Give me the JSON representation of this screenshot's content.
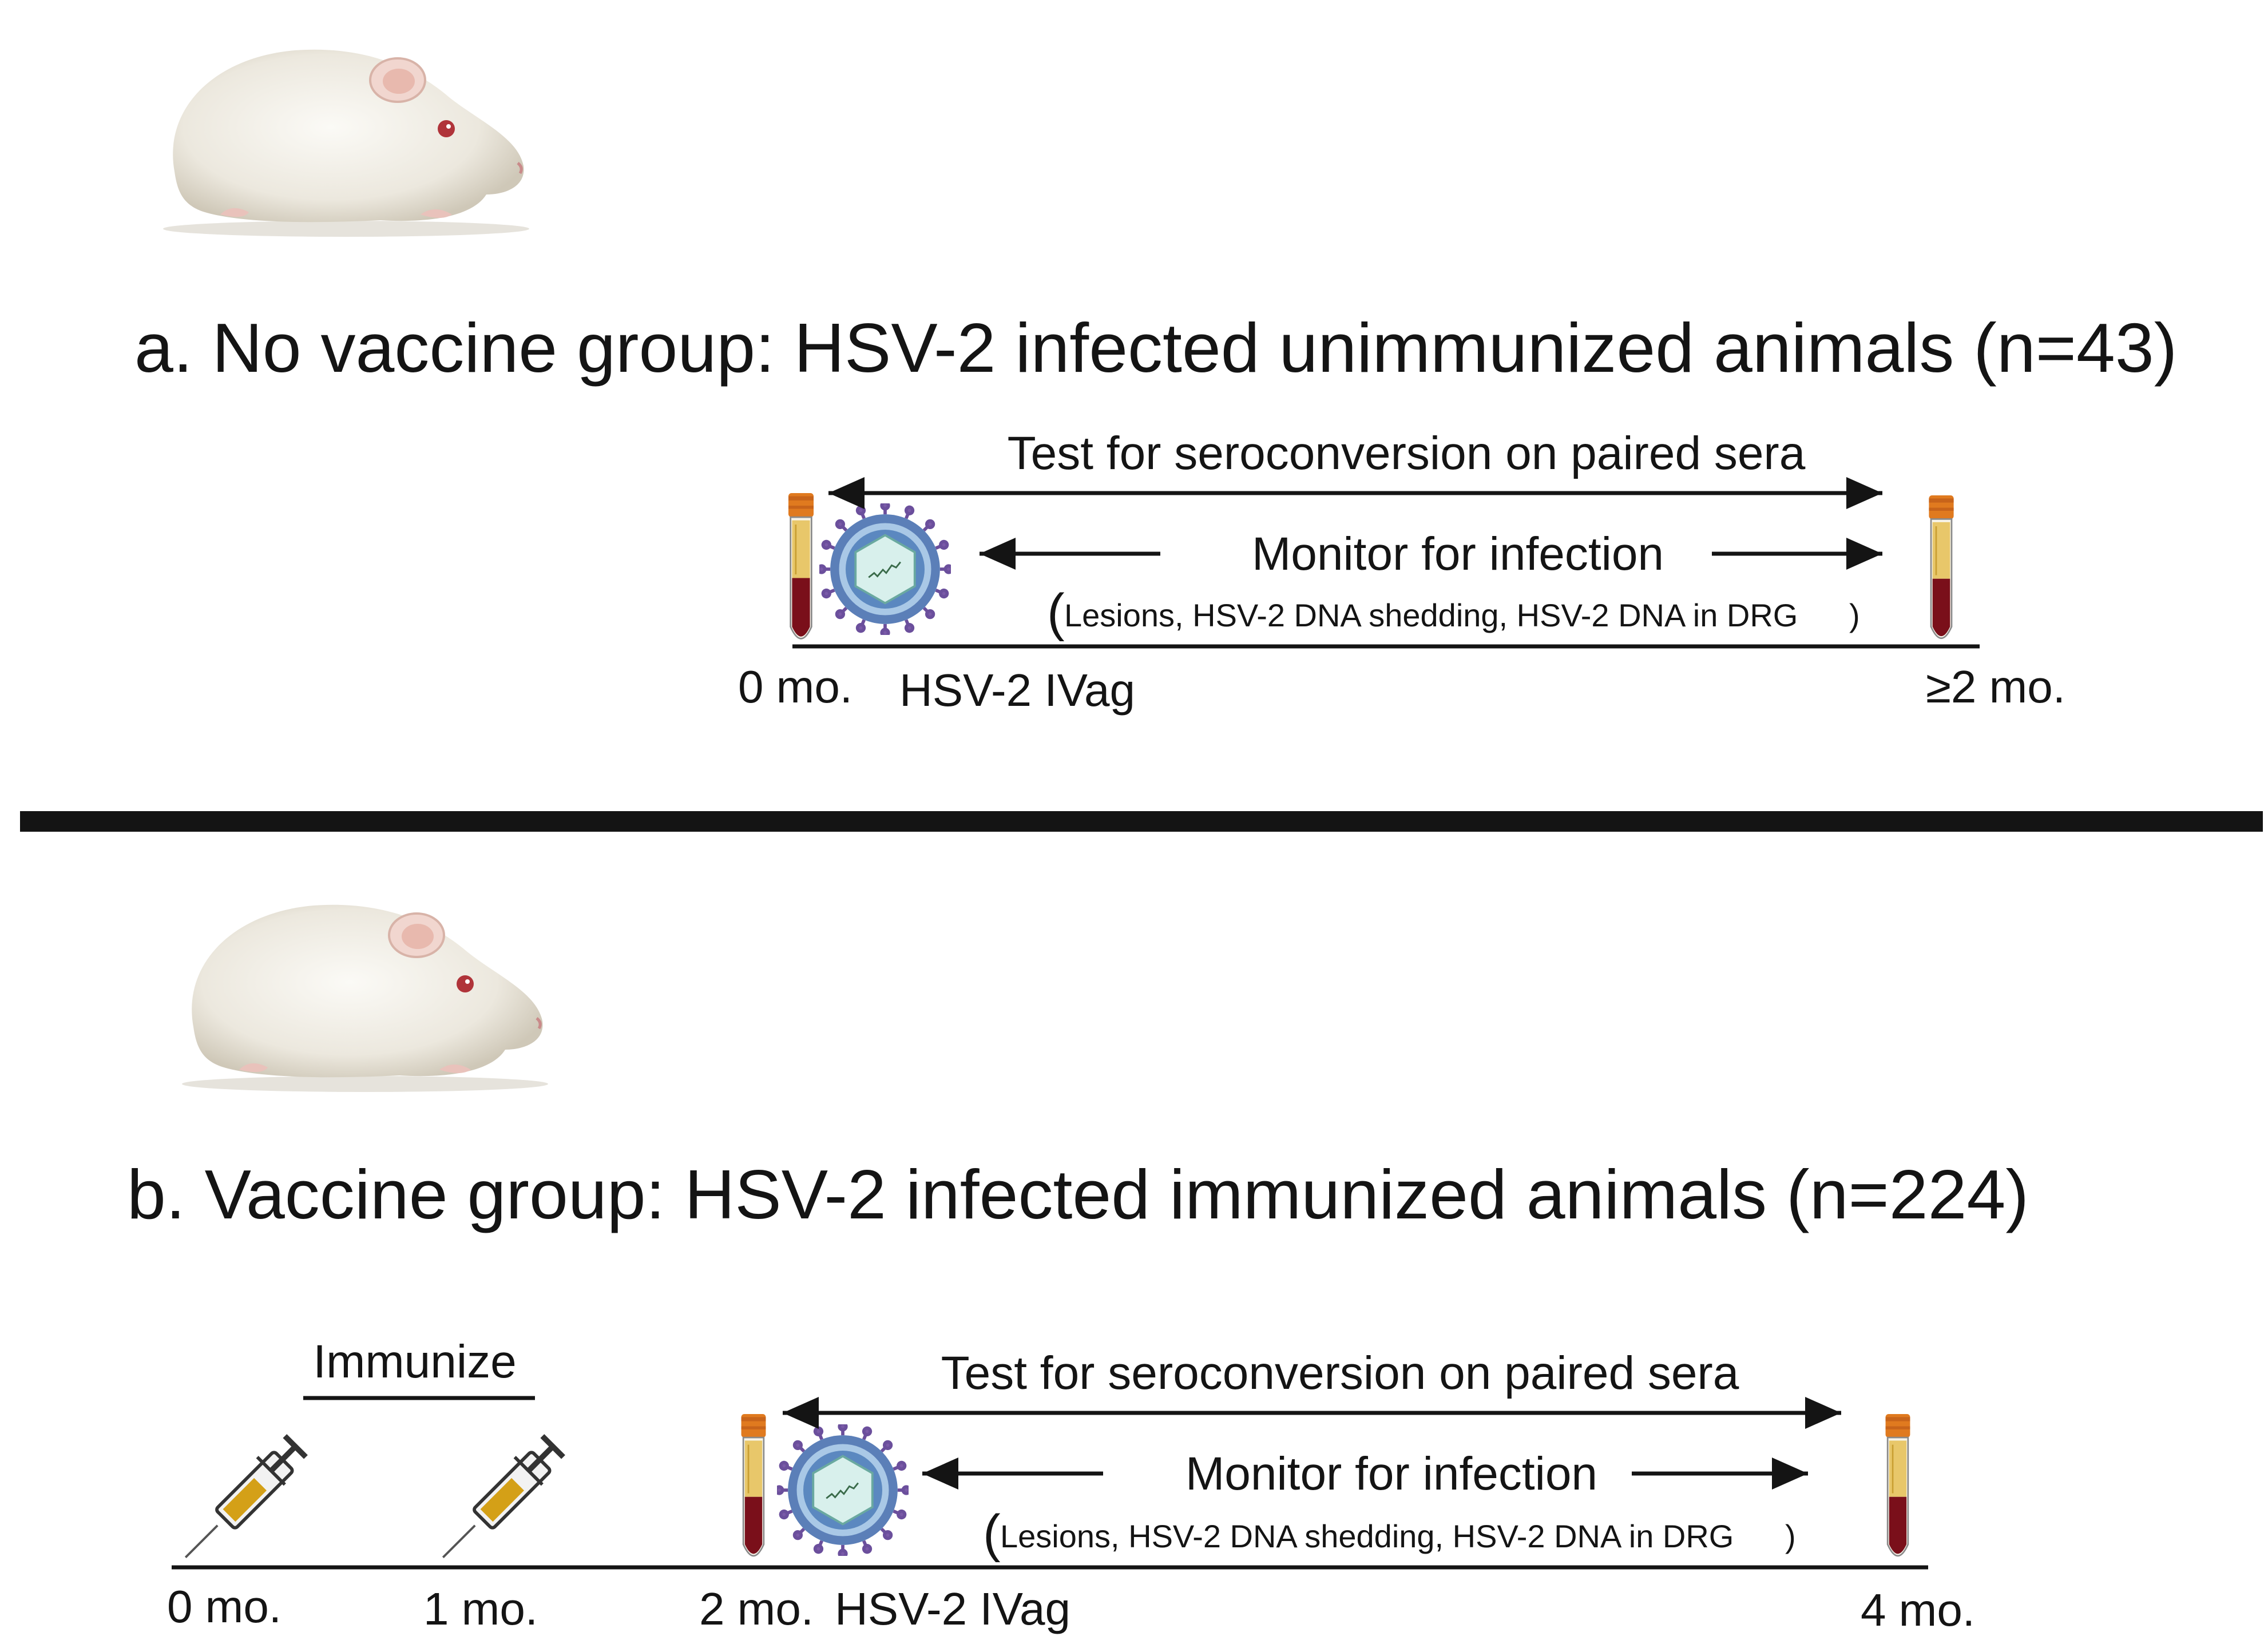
{
  "panel_a": {
    "title": "a. No vaccine group: HSV-2 infected unimmunized animals (n=43)",
    "test_label": "Test for seroconversion on paired sera",
    "monitor_label": "Monitor for infection",
    "monitor_detail": "Lesions, HSV-2 DNA shedding, HSV-2 DNA in DRG",
    "timepoints": [
      "0 mo.",
      "≥2 mo."
    ],
    "challenge_label": "HSV-2 IVag"
  },
  "panel_b": {
    "title": "b. Vaccine group: HSV-2 infected immunized animals (n=224)",
    "immunize_label": "Immunize",
    "test_label": "Test for seroconversion on paired sera",
    "monitor_label": "Monitor for infection",
    "monitor_detail": "Lesions, HSV-2 DNA shedding, HSV-2 DNA in DRG",
    "timepoints": [
      "0 mo.",
      "1 mo.",
      "2 mo.",
      "4 mo."
    ],
    "challenge_label": "HSV-2 IVag"
  },
  "icons": {
    "animal": "guinea-pig-icon",
    "blood_tube": "blood-tube-icon",
    "virus": "virus-icon",
    "syringe": "syringe-icon"
  },
  "colors": {
    "text": "#141414",
    "tube_cap": "#e07a1f",
    "tube_serum": "#e8c76a",
    "tube_blood": "#7a0f1a",
    "virus_core": "#d8f0ec",
    "virus_shell": "#5b7fb8",
    "virus_spike": "#7a5aa8",
    "syringe_fluid": "#d4a017"
  }
}
